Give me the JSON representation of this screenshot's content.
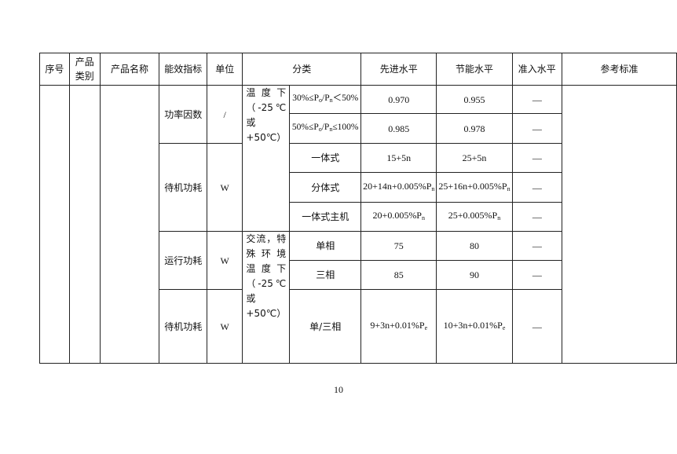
{
  "headers": {
    "seq": "序号",
    "category": "产品类别",
    "name": "产品名称",
    "indicator": "能效指标",
    "unit": "单位",
    "classification": "分类",
    "advanced": "先进水平",
    "energy_saving": "节能水平",
    "entry": "准入水平",
    "reference": "参考标准"
  },
  "groups": [
    {
      "indicator": "功率因数",
      "unit": "/"
    },
    {
      "indicator": "待机功耗",
      "unit": "W"
    },
    {
      "indicator": "运行功耗",
      "unit": "W"
    },
    {
      "indicator": "待机功耗",
      "unit": "W"
    }
  ],
  "conditions": [
    "温 度 下（-25℃ 或 +50℃）",
    "交流，特 殊 环 境 温 度 下（-25℃ 或 +50℃）"
  ],
  "rows": [
    {
      "class_a": "30%≤P",
      "sub_a": "o",
      "class_b": "/P",
      "sub_b": "n",
      "class_c": "＜50%",
      "advanced": "0.970",
      "energy_saving": "0.955",
      "entry": "—"
    },
    {
      "class_a": "50%≤P",
      "sub_a": "o",
      "class_b": "/P",
      "sub_b": "n",
      "class_c": "≤100%",
      "advanced": "0.985",
      "energy_saving": "0.978",
      "entry": "—"
    },
    {
      "class": "一体式",
      "advanced": "15+5n",
      "energy_saving": "25+5n",
      "entry": "—"
    },
    {
      "class": "分体式",
      "advanced": "20+14n+0.005%P",
      "advanced_sub": "n",
      "energy_saving": "25+16n+0.005%P",
      "energy_saving_sub": "n",
      "entry": "—"
    },
    {
      "class": "一体式主机",
      "advanced": "20+0.005%P",
      "advanced_sub": "n",
      "energy_saving": "25+0.005%P",
      "energy_saving_sub": "n",
      "entry": "—"
    },
    {
      "class": "单相",
      "advanced": "75",
      "energy_saving": "80",
      "entry": "—"
    },
    {
      "class": "三相",
      "advanced": "85",
      "energy_saving": "90",
      "entry": "—"
    },
    {
      "class": "单/三相",
      "advanced": "9+3n+0.01%P",
      "advanced_sub": "e",
      "energy_saving": "10+3n+0.01%P",
      "energy_saving_sub": "e",
      "entry": "—"
    }
  ],
  "page_number": "10"
}
